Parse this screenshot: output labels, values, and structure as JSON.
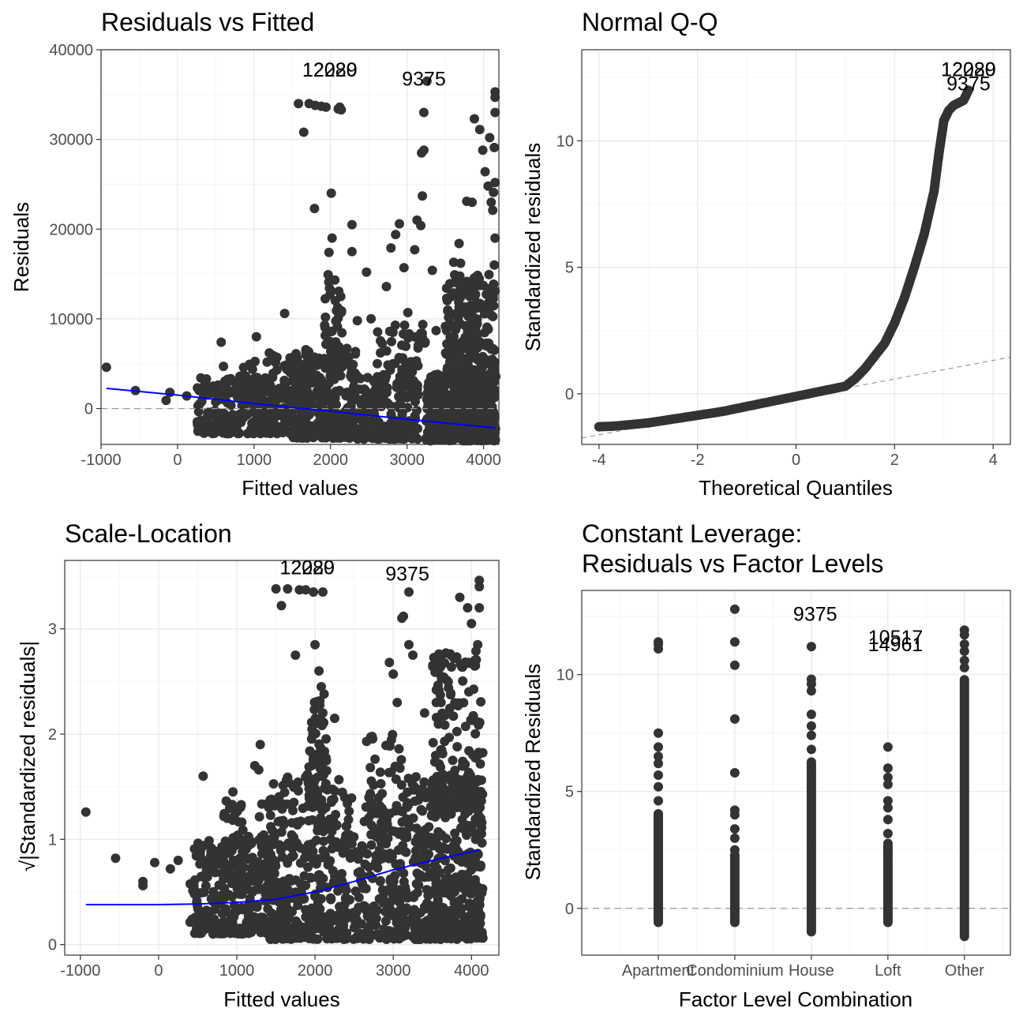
{
  "colors": {
    "points": "#333333",
    "smooth": "#0000ff",
    "reference": "#999999",
    "grid": "#ebebeb",
    "frame": "#333333"
  },
  "chart_data": [
    {
      "type": "scatter",
      "id": "rvf",
      "title": "Residuals vs Fitted",
      "xlabel": "Fitted values",
      "ylabel": "Residuals",
      "xlim": [
        -1000,
        4200
      ],
      "ylim": [
        -4000,
        40000
      ],
      "xticks": [
        -1000,
        0,
        1000,
        2000,
        3000,
        4000
      ],
      "xtick_labels": [
        "-1000",
        "0",
        "1000",
        "2000",
        "3000",
        "4000"
      ],
      "yticks": [
        0,
        10000,
        20000,
        30000,
        40000
      ],
      "ytick_labels": [
        "0",
        "10000",
        "20000",
        "30000",
        "40000"
      ],
      "grid": true,
      "hline": 0,
      "points": [
        [
          -930,
          4600
        ],
        [
          -550,
          2000
        ],
        [
          -150,
          900
        ],
        [
          -100,
          1800
        ],
        [
          120,
          1400
        ],
        [
          260,
          2300
        ],
        [
          400,
          1500
        ],
        [
          570,
          7400
        ],
        [
          600,
          4700
        ],
        [
          1030,
          8000
        ],
        [
          1200,
          6200
        ],
        [
          1300,
          5700
        ],
        [
          1400,
          10600
        ],
        [
          1580,
          34000
        ],
        [
          1650,
          30800
        ],
        [
          1720,
          34000
        ],
        [
          1790,
          22300
        ],
        [
          1800,
          33800
        ],
        [
          1880,
          33700
        ],
        [
          1940,
          33600
        ],
        [
          1980,
          17400
        ],
        [
          2010,
          24000
        ],
        [
          2020,
          19000
        ],
        [
          2100,
          33400
        ],
        [
          2120,
          33600
        ],
        [
          2140,
          33300
        ],
        [
          2280,
          20500
        ],
        [
          2280,
          17500
        ],
        [
          2350,
          9800
        ],
        [
          2470,
          15200
        ],
        [
          2530,
          10000
        ],
        [
          2730,
          13600
        ],
        [
          2790,
          17900
        ],
        [
          2850,
          19400
        ],
        [
          2900,
          20600
        ],
        [
          2960,
          15700
        ],
        [
          3010,
          10700
        ],
        [
          3100,
          17700
        ],
        [
          3130,
          21000
        ],
        [
          3180,
          20400
        ],
        [
          3190,
          28500
        ],
        [
          3200,
          23700
        ],
        [
          3220,
          28800
        ],
        [
          3220,
          33000
        ],
        [
          3260,
          36500
        ],
        [
          3330,
          15400
        ],
        [
          3380,
          8700
        ],
        [
          3530,
          10900
        ],
        [
          3610,
          16300
        ],
        [
          3680,
          18400
        ],
        [
          3700,
          16200
        ],
        [
          3780,
          23100
        ],
        [
          3850,
          23000
        ],
        [
          3880,
          32300
        ],
        [
          3950,
          31100
        ],
        [
          3990,
          28800
        ],
        [
          4020,
          26400
        ],
        [
          4060,
          24800
        ],
        [
          4080,
          30200
        ],
        [
          4100,
          23000
        ],
        [
          4120,
          22100
        ],
        [
          4130,
          24100
        ],
        [
          4140,
          29100
        ],
        [
          4150,
          35300
        ],
        [
          4150,
          34700
        ],
        [
          4150,
          33000
        ],
        [
          4150,
          25200
        ],
        [
          4150,
          19000
        ],
        [
          4140,
          16000
        ],
        [
          4150,
          13100
        ]
      ],
      "clusters": [
        {
          "x": [
            250,
            1500
          ],
          "y": [
            -2800,
            3500
          ],
          "n": 260
        },
        {
          "x": [
            700,
            1800
          ],
          "y": [
            1000,
            6000
          ],
          "n": 90
        },
        {
          "x": [
            1500,
            2350
          ],
          "y": [
            -3300,
            7000
          ],
          "n": 300
        },
        {
          "x": [
            1900,
            2150
          ],
          "y": [
            4000,
            15000
          ],
          "n": 60
        },
        {
          "x": [
            2350,
            3150
          ],
          "y": [
            -3400,
            3500
          ],
          "n": 180
        },
        {
          "x": [
            2600,
            3250
          ],
          "y": [
            2500,
            10000
          ],
          "n": 60
        },
        {
          "x": [
            3250,
            4160
          ],
          "y": [
            -3600,
            4000
          ],
          "n": 400
        },
        {
          "x": [
            3500,
            4160
          ],
          "y": [
            3000,
            15000
          ],
          "n": 220
        }
      ],
      "smooth": [
        [
          -930,
          2250
        ],
        [
          0,
          1500
        ],
        [
          1000,
          550
        ],
        [
          2000,
          -300
        ],
        [
          3000,
          -1200
        ],
        [
          4150,
          -2150
        ]
      ],
      "labels": [
        {
          "text": "12280",
          "x": 1990,
          "y": 37000
        },
        {
          "text": "12029",
          "x": 1990,
          "y": 37000
        },
        {
          "text": "9375",
          "x": 3220,
          "y": 36000
        }
      ]
    },
    {
      "type": "scatter",
      "id": "qq",
      "title": "Normal Q-Q",
      "xlabel": "Theoretical Quantiles",
      "ylabel": "Standardized residuals",
      "xlim": [
        -4.35,
        4.35
      ],
      "ylim": [
        -2.0,
        13.6
      ],
      "xticks": [
        -4,
        -2,
        0,
        2,
        4
      ],
      "xtick_labels": [
        "-4",
        "-2",
        "0",
        "2",
        "4"
      ],
      "yticks": [
        0,
        5,
        10
      ],
      "ytick_labels": [
        "0",
        "5",
        "10"
      ],
      "grid": true,
      "qqline": [
        [
          -4.35,
          -1.75
        ],
        [
          4.35,
          1.45
        ]
      ],
      "curve": [
        [
          -4.0,
          -1.3
        ],
        [
          -3.7,
          -1.28
        ],
        [
          -3.0,
          -1.15
        ],
        [
          -2.5,
          -1.0
        ],
        [
          -2.0,
          -0.85
        ],
        [
          -1.5,
          -0.7
        ],
        [
          -1.0,
          -0.5
        ],
        [
          -0.5,
          -0.3
        ],
        [
          0.0,
          -0.1
        ],
        [
          0.5,
          0.1
        ],
        [
          1.0,
          0.3
        ],
        [
          1.2,
          0.6
        ],
        [
          1.4,
          1.0
        ],
        [
          1.6,
          1.5
        ],
        [
          1.8,
          2.0
        ],
        [
          2.0,
          2.8
        ],
        [
          2.2,
          3.8
        ],
        [
          2.4,
          5.0
        ],
        [
          2.6,
          6.3
        ],
        [
          2.8,
          8.0
        ],
        [
          2.9,
          9.5
        ],
        [
          3.0,
          10.8
        ],
        [
          3.1,
          11.2
        ],
        [
          3.2,
          11.4
        ],
        [
          3.3,
          11.5
        ],
        [
          3.4,
          11.6
        ],
        [
          3.5,
          12.0
        ]
      ],
      "labels": [
        {
          "text": "12280",
          "x": 3.5,
          "y": 12.55
        },
        {
          "text": "12029",
          "x": 3.5,
          "y": 12.55
        },
        {
          "text": "9375",
          "x": 3.5,
          "y": 12.0
        }
      ]
    },
    {
      "type": "scatter",
      "id": "sl",
      "title": "Scale-Location",
      "xlabel": "Fitted values",
      "ylabel": "√|Standardized residuals|",
      "xlim": [
        -1200,
        4350
      ],
      "ylim": [
        -0.1,
        3.65
      ],
      "xticks": [
        -1000,
        0,
        1000,
        2000,
        3000,
        4000
      ],
      "xtick_labels": [
        "-1000",
        "0",
        "1000",
        "2000",
        "3000",
        "4000"
      ],
      "yticks": [
        0,
        1,
        2,
        3
      ],
      "ytick_labels": [
        "0",
        "1",
        "2",
        "3"
      ],
      "grid": true,
      "points": [
        [
          -930,
          1.26
        ],
        [
          -550,
          0.82
        ],
        [
          -200,
          0.6
        ],
        [
          -200,
          0.56
        ],
        [
          -50,
          0.78
        ],
        [
          150,
          0.72
        ],
        [
          250,
          0.8
        ],
        [
          570,
          1.6
        ],
        [
          950,
          1.45
        ],
        [
          1230,
          1.7
        ],
        [
          1280,
          1.66
        ],
        [
          1300,
          1.9
        ],
        [
          1500,
          3.38
        ],
        [
          1570,
          3.22
        ],
        [
          1650,
          3.38
        ],
        [
          1750,
          2.75
        ],
        [
          1800,
          3.37
        ],
        [
          1880,
          3.37
        ],
        [
          1980,
          3.35
        ],
        [
          2000,
          2.85
        ],
        [
          2050,
          2.6
        ],
        [
          2080,
          2.45
        ],
        [
          2100,
          3.35
        ],
        [
          2100,
          2.2
        ],
        [
          2250,
          2.15
        ],
        [
          2660,
          1.93
        ],
        [
          2950,
          2.68
        ],
        [
          3000,
          2.57
        ],
        [
          3050,
          2.3
        ],
        [
          3110,
          3.1
        ],
        [
          3130,
          3.12
        ],
        [
          3200,
          3.35
        ],
        [
          3200,
          2.85
        ],
        [
          3250,
          2.75
        ],
        [
          3400,
          2.2
        ],
        [
          3550,
          2.3
        ],
        [
          3610,
          2.3
        ],
        [
          3850,
          3.3
        ],
        [
          3950,
          3.2
        ],
        [
          4000,
          3.05
        ],
        [
          4100,
          3.46
        ],
        [
          4100,
          3.4
        ],
        [
          4100,
          3.2
        ],
        [
          4080,
          2.85
        ],
        [
          4050,
          2.65
        ]
      ],
      "clusters": [
        {
          "x": [
            400,
            1500
          ],
          "y": [
            0.1,
            1.0
          ],
          "n": 260
        },
        {
          "x": [
            800,
            1500
          ],
          "y": [
            0.6,
            1.4
          ],
          "n": 80
        },
        {
          "x": [
            1400,
            2350
          ],
          "y": [
            0.05,
            1.6
          ],
          "n": 320
        },
        {
          "x": [
            1900,
            2150
          ],
          "y": [
            1.3,
            2.4
          ],
          "n": 60
        },
        {
          "x": [
            2350,
            3200
          ],
          "y": [
            0.05,
            1.4
          ],
          "n": 220
        },
        {
          "x": [
            2700,
            3250
          ],
          "y": [
            1.0,
            2.0
          ],
          "n": 60
        },
        {
          "x": [
            3250,
            4150
          ],
          "y": [
            0.05,
            1.6
          ],
          "n": 420
        },
        {
          "x": [
            3500,
            4150
          ],
          "y": [
            1.3,
            2.8
          ],
          "n": 160
        }
      ],
      "smooth": [
        [
          -930,
          0.38
        ],
        [
          0,
          0.38
        ],
        [
          500,
          0.385
        ],
        [
          1000,
          0.4
        ],
        [
          1500,
          0.43
        ],
        [
          2000,
          0.5
        ],
        [
          2500,
          0.6
        ],
        [
          3000,
          0.71
        ],
        [
          3500,
          0.8
        ],
        [
          4100,
          0.9
        ]
      ],
      "labels": [
        {
          "text": "12280",
          "x": 1900,
          "y": 3.52
        },
        {
          "text": "12029",
          "x": 1900,
          "y": 3.52
        },
        {
          "text": "9375",
          "x": 3180,
          "y": 3.46
        }
      ]
    },
    {
      "type": "scatter",
      "id": "cl",
      "title": "Constant Leverage:",
      "subtitle": "Residuals vs Factor Levels",
      "xlabel": "Factor Level Combination",
      "ylabel": "Standardized Residuals",
      "xlim": [
        0.0,
        5.6
      ],
      "ylim": [
        -2.0,
        13.6
      ],
      "categories": [
        "Apartment",
        "Condominium",
        "House",
        "Loft",
        "Other"
      ],
      "yticks": [
        0,
        5,
        10
      ],
      "ytick_labels": [
        "0",
        "5",
        "10"
      ],
      "grid": true,
      "hline": 0,
      "columns": [
        {
          "x": 1,
          "min": -0.6,
          "dense_max": 4.1,
          "extra": [
            4.6,
            5.2,
            5.7,
            6.2,
            6.5,
            6.9,
            7.5,
            11.1,
            11.3,
            11.4
          ]
        },
        {
          "x": 2,
          "min": -0.6,
          "dense_max": 2.3,
          "extra": [
            2.5,
            3.0,
            3.4,
            4.0,
            4.2,
            5.8,
            8.1,
            10.4,
            11.4,
            12.8
          ]
        },
        {
          "x": 3,
          "min": -1.0,
          "dense_max": 6.3,
          "extra": [
            6.8,
            7.4,
            7.8,
            8.3,
            9.3,
            9.6,
            9.8,
            11.2
          ]
        },
        {
          "x": 4,
          "min": -0.6,
          "dense_max": 2.8,
          "extra": [
            3.2,
            3.8,
            4.3,
            4.6,
            5.3,
            5.6,
            6.0,
            6.9
          ]
        },
        {
          "x": 5,
          "min": -1.2,
          "dense_max": 9.8,
          "extra": [
            10.3,
            10.6,
            11.0,
            11.3,
            11.7,
            11.9
          ]
        }
      ],
      "labels": [
        {
          "text": "9375",
          "x": 3.05,
          "y": 12.3
        },
        {
          "text": "10517",
          "x": 4.1,
          "y": 11.3
        },
        {
          "text": "14961",
          "x": 4.1,
          "y": 11.0
        }
      ]
    }
  ]
}
